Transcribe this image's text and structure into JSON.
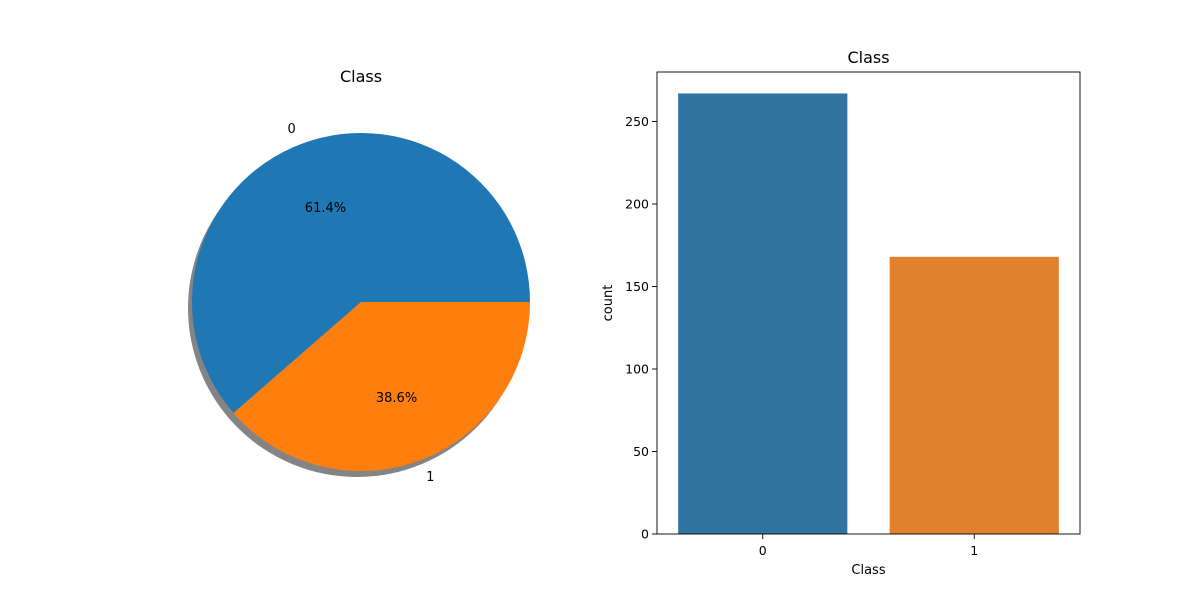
{
  "chart_data": [
    {
      "type": "pie",
      "title": "Class",
      "labels": [
        "0",
        "1"
      ],
      "percentages": [
        61.4,
        38.6
      ],
      "autopct": [
        "61.4%",
        "38.6%"
      ],
      "colors": [
        "#1f77b4",
        "#ff7f0e"
      ],
      "shadow": true,
      "start_angle_deg": 0
    },
    {
      "type": "bar",
      "title": "Class",
      "categories": [
        "0",
        "1"
      ],
      "values": [
        267,
        168
      ],
      "xlabel": "Class",
      "ylabel": "count",
      "ylim": [
        0,
        280
      ],
      "yticks": [
        0,
        50,
        100,
        150,
        200,
        250
      ],
      "colors": [
        "#3274a1",
        "#e1812c"
      ],
      "grid": false
    }
  ]
}
